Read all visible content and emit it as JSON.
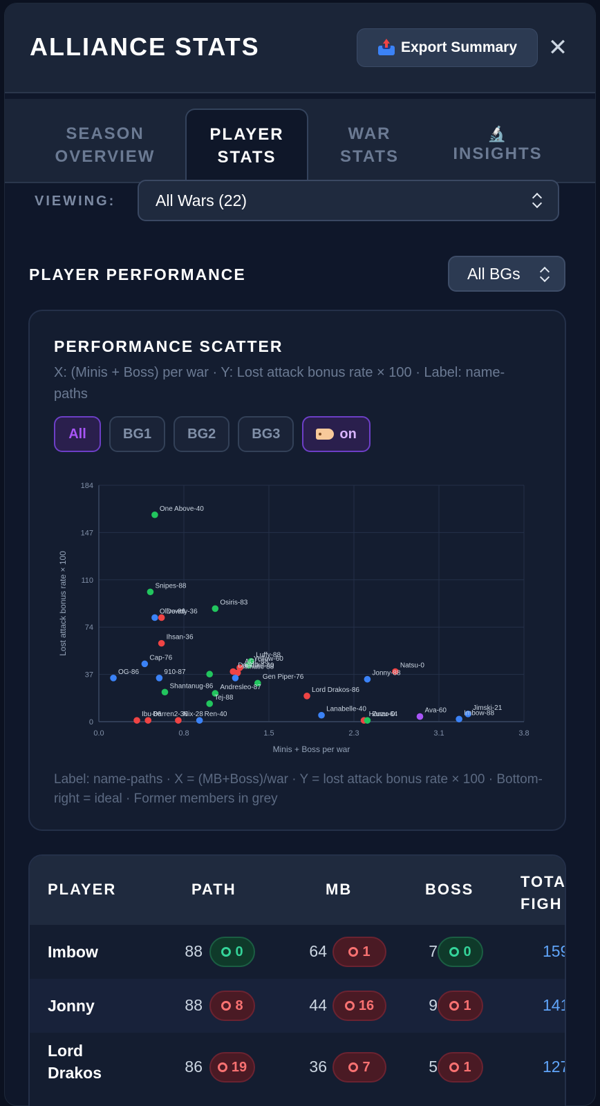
{
  "header": {
    "title": "ALLIANCE STATS",
    "export_label": "Export Summary",
    "close_glyph": "✕"
  },
  "tabs": [
    {
      "line1": "SEASON",
      "line2": "OVERVIEW"
    },
    {
      "line1": "PLAYER",
      "line2": "STATS"
    },
    {
      "line1": "WAR",
      "line2": "STATS"
    },
    {
      "line1": "INSIGHTS",
      "icon": "microscope-icon"
    }
  ],
  "viewing": {
    "label": "VIEWING:",
    "value": "All Wars (22)"
  },
  "section": {
    "title": "PLAYER PERFORMANCE",
    "bg_filter": "All BGs"
  },
  "scatter": {
    "title": "PERFORMANCE SCATTER",
    "description": "X: (Minis + Boss) per war · Y: Lost attack bonus rate × 100 · Label: name-paths",
    "filters": [
      "All",
      "BG1",
      "BG2",
      "BG3"
    ],
    "label_toggle": "on",
    "footer": "Label: name-paths · X = (MB+Boss)/war · Y = lost attack bonus rate × 100 · Bottom-right = ideal · Former members in grey"
  },
  "colors": {
    "red": "#ef4444",
    "green": "#22c55e",
    "blue": "#3b82f6",
    "purple": "#a855f7"
  },
  "chart_data": {
    "type": "scatter",
    "xlabel": "Minis + Boss per war",
    "ylabel": "Lost attack bonus rate × 100",
    "xlim": [
      0.0,
      3.8
    ],
    "ylim": [
      0,
      184
    ],
    "xticks": [
      "0.0",
      "0.8",
      "1.5",
      "2.3",
      "3.1",
      "3.8"
    ],
    "yticks": [
      "0",
      "37",
      "74",
      "110",
      "147",
      "184"
    ],
    "grid": true,
    "points": [
      {
        "label": "One Above-40",
        "x": 0.5,
        "y": 161,
        "color": "green"
      },
      {
        "label": "Snipes-88",
        "x": 0.46,
        "y": 101,
        "color": "green"
      },
      {
        "label": "Osiris-83",
        "x": 1.04,
        "y": 88,
        "color": "green"
      },
      {
        "label": "Olive-86",
        "x": 0.5,
        "y": 81,
        "color": "blue"
      },
      {
        "label": "Dowdy-36",
        "x": 0.56,
        "y": 81,
        "color": "red"
      },
      {
        "label": "Ihsan-36",
        "x": 0.56,
        "y": 61,
        "color": "red"
      },
      {
        "label": "Cap-76",
        "x": 0.41,
        "y": 45,
        "color": "blue"
      },
      {
        "label": "Luffy-88",
        "x": 1.36,
        "y": 47,
        "color": "green"
      },
      {
        "label": "Yellow-60",
        "x": 1.34,
        "y": 44,
        "color": "green"
      },
      {
        "label": "AGL-88",
        "x": 1.26,
        "y": 42,
        "color": "red"
      },
      {
        "label": "Darkbird-40",
        "x": 1.2,
        "y": 39,
        "color": "red"
      },
      {
        "label": "Illmatic-88",
        "x": 1.24,
        "y": 38,
        "color": "red"
      },
      {
        "label": "OG-86",
        "x": 0.13,
        "y": 34,
        "color": "blue"
      },
      {
        "label": "910-87",
        "x": 0.54,
        "y": 34,
        "color": "blue"
      },
      {
        "label": "Gen Piper-76",
        "x": 1.42,
        "y": 30,
        "color": "green"
      },
      {
        "label": "Shantanug-86",
        "x": 0.59,
        "y": 23,
        "color": "green"
      },
      {
        "label": "Andresleo-87",
        "x": 1.04,
        "y": 22,
        "color": "green"
      },
      {
        "label": "Tej-88",
        "x": 0.99,
        "y": 14,
        "color": "green"
      },
      {
        "label": "",
        "x": 0.99,
        "y": 37,
        "color": "green"
      },
      {
        "label": "",
        "x": 1.22,
        "y": 34,
        "color": "blue"
      },
      {
        "label": "Lord Drakos-86",
        "x": 1.86,
        "y": 20,
        "color": "red"
      },
      {
        "label": "Natsu-0",
        "x": 2.65,
        "y": 39,
        "color": "red"
      },
      {
        "label": "Jonny-88",
        "x": 2.4,
        "y": 33,
        "color": "blue"
      },
      {
        "label": "Lanabelle-40",
        "x": 1.99,
        "y": 5,
        "color": "blue"
      },
      {
        "label": "Hanzo-0",
        "x": 2.37,
        "y": 1,
        "color": "red"
      },
      {
        "label": "Zuzu-64",
        "x": 2.4,
        "y": 1,
        "color": "green"
      },
      {
        "label": "Ava-60",
        "x": 2.87,
        "y": 4,
        "color": "purple"
      },
      {
        "label": "Jimski-21",
        "x": 3.3,
        "y": 6,
        "color": "blue"
      },
      {
        "label": "Imbow-88",
        "x": 3.22,
        "y": 2,
        "color": "blue"
      },
      {
        "label": "Ibu-86",
        "x": 0.34,
        "y": 1,
        "color": "red"
      },
      {
        "label": "Darren2-36",
        "x": 0.44,
        "y": 1,
        "color": "red"
      },
      {
        "label": "Nix-28",
        "x": 0.71,
        "y": 1,
        "color": "red"
      },
      {
        "label": "Ren-40",
        "x": 0.9,
        "y": 1,
        "color": "blue"
      }
    ]
  },
  "table": {
    "headers": {
      "player": "PLAYER",
      "path": "PATH",
      "mb": "MB",
      "boss": "BOSS",
      "total_1": "TOTA",
      "total_2": "FIGH"
    },
    "rows": [
      {
        "name_1": "Imbow",
        "name_2": "",
        "path": "88",
        "path_badge": "0",
        "path_color": "green",
        "mb": "64",
        "mb_badge": "1",
        "mb_color": "red",
        "boss": "7",
        "boss_badge": "0",
        "boss_color": "green",
        "total": "159"
      },
      {
        "name_1": "Jonny",
        "name_2": "",
        "path": "88",
        "path_badge": "8",
        "path_color": "red",
        "mb": "44",
        "mb_badge": "16",
        "mb_color": "red",
        "boss": "9",
        "boss_badge": "1",
        "boss_color": "red",
        "total": "141"
      },
      {
        "name_1": "Lord",
        "name_2": "Drakos",
        "path": "86",
        "path_badge": "19",
        "path_color": "red",
        "mb": "36",
        "mb_badge": "7",
        "mb_color": "red",
        "boss": "5",
        "boss_badge": "1",
        "boss_color": "red",
        "total": "127"
      }
    ]
  }
}
